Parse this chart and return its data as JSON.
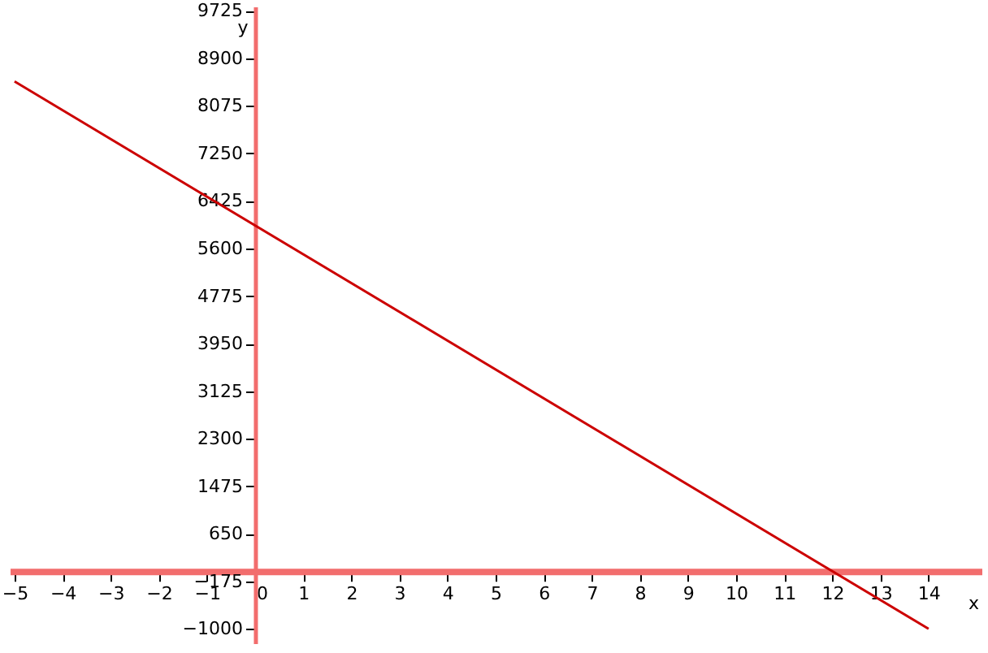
{
  "chart_data": {
    "type": "line",
    "xlabel": "x",
    "ylabel": "y",
    "x": [
      -5,
      14
    ],
    "series": [
      {
        "color": "#cc0000",
        "values": [
          8500,
          -1000
        ]
      }
    ],
    "xlim": [
      -5.1,
      15.1
    ],
    "ylim": [
      -1250,
      9800
    ],
    "xticks": [
      -5,
      -4,
      -3,
      -2,
      -1,
      0,
      1,
      2,
      3,
      4,
      5,
      6,
      7,
      8,
      9,
      10,
      11,
      12,
      13,
      14
    ],
    "yticks": [
      -1000,
      -175,
      650,
      1475,
      2300,
      3125,
      3950,
      4775,
      5600,
      6425,
      7250,
      8075,
      8900,
      9725
    ]
  }
}
